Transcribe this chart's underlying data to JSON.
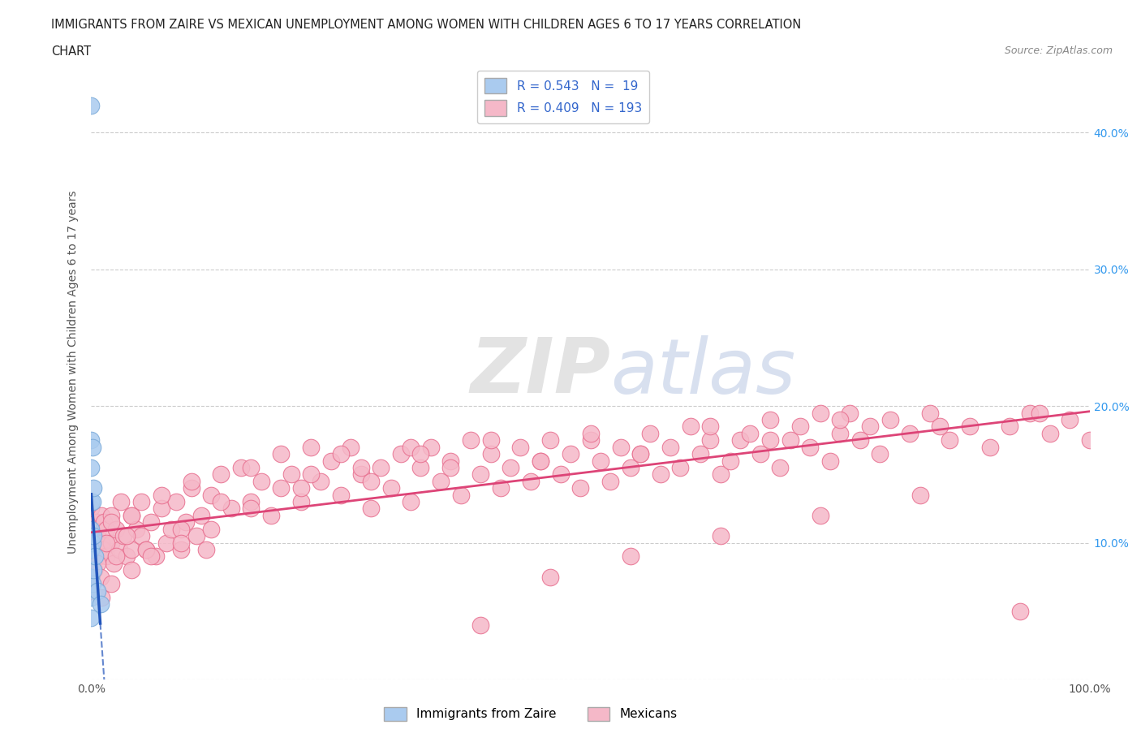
{
  "title_line1": "IMMIGRANTS FROM ZAIRE VS MEXICAN UNEMPLOYMENT AMONG WOMEN WITH CHILDREN AGES 6 TO 17 YEARS CORRELATION",
  "title_line2": "CHART",
  "source": "Source: ZipAtlas.com",
  "ylabel": "Unemployment Among Women with Children Ages 6 to 17 years",
  "background_color": "#ffffff",
  "grid_color": "#cccccc",
  "xlim": [
    0.0,
    1.0
  ],
  "ylim": [
    0.0,
    0.45
  ],
  "xticks": [
    0.0,
    0.1,
    0.2,
    0.3,
    0.4,
    0.5,
    0.6,
    0.7,
    0.8,
    0.9,
    1.0
  ],
  "yticks": [
    0.0,
    0.1,
    0.2,
    0.3,
    0.4
  ],
  "ytick_labels": [
    "",
    "10.0%",
    "20.0%",
    "30.0%",
    "40.0%"
  ],
  "zaire_color": "#aacbef",
  "zaire_edge_color": "#7aaad8",
  "mex_color": "#f5b8c8",
  "mex_edge_color": "#e87090",
  "zaire_line_color": "#2255bb",
  "mex_line_color": "#dd4477",
  "legend_color": "#3366cc",
  "watermark1": "ZIP",
  "watermark2": "atlas",
  "watermark1_color": "#cccccc",
  "watermark2_color": "#aabbdd",
  "zaire_x": [
    0.0,
    0.0,
    0.0,
    0.0,
    0.0,
    0.0,
    0.0,
    0.0,
    0.0,
    0.001,
    0.001,
    0.001,
    0.001,
    0.002,
    0.002,
    0.002,
    0.004,
    0.006,
    0.009
  ],
  "zaire_y": [
    0.42,
    0.175,
    0.155,
    0.13,
    0.11,
    0.095,
    0.075,
    0.06,
    0.045,
    0.17,
    0.13,
    0.1,
    0.07,
    0.14,
    0.105,
    0.08,
    0.09,
    0.065,
    0.055
  ],
  "mex_x": [
    0.0,
    0.0,
    0.0,
    0.0,
    0.0,
    0.0,
    0.0,
    0.0,
    0.0,
    0.0,
    0.005,
    0.005,
    0.007,
    0.008,
    0.01,
    0.01,
    0.012,
    0.013,
    0.015,
    0.015,
    0.02,
    0.02,
    0.022,
    0.025,
    0.028,
    0.03,
    0.032,
    0.035,
    0.04,
    0.04,
    0.045,
    0.05,
    0.05,
    0.055,
    0.06,
    0.065,
    0.07,
    0.075,
    0.08,
    0.085,
    0.09,
    0.095,
    0.1,
    0.105,
    0.11,
    0.115,
    0.12,
    0.13,
    0.14,
    0.15,
    0.16,
    0.17,
    0.18,
    0.19,
    0.2,
    0.21,
    0.22,
    0.23,
    0.24,
    0.25,
    0.26,
    0.27,
    0.28,
    0.29,
    0.3,
    0.31,
    0.32,
    0.33,
    0.34,
    0.35,
    0.36,
    0.37,
    0.38,
    0.39,
    0.4,
    0.41,
    0.42,
    0.43,
    0.44,
    0.45,
    0.46,
    0.47,
    0.48,
    0.49,
    0.5,
    0.51,
    0.52,
    0.53,
    0.54,
    0.55,
    0.56,
    0.57,
    0.58,
    0.59,
    0.6,
    0.61,
    0.62,
    0.63,
    0.64,
    0.65,
    0.66,
    0.67,
    0.68,
    0.69,
    0.7,
    0.71,
    0.72,
    0.73,
    0.74,
    0.75,
    0.76,
    0.77,
    0.78,
    0.79,
    0.8,
    0.82,
    0.84,
    0.86,
    0.88,
    0.9,
    0.92,
    0.94,
    0.96,
    0.98,
    1.0,
    0.003,
    0.006,
    0.009,
    0.015,
    0.02,
    0.025,
    0.035,
    0.04,
    0.055,
    0.07,
    0.09,
    0.1,
    0.13,
    0.16,
    0.19,
    0.22,
    0.25,
    0.28,
    0.32,
    0.36,
    0.4,
    0.45,
    0.5,
    0.55,
    0.62,
    0.68,
    0.75,
    0.85,
    0.95,
    0.01,
    0.02,
    0.04,
    0.06,
    0.09,
    0.12,
    0.16,
    0.21,
    0.27,
    0.33,
    0.39,
    0.46,
    0.54,
    0.63,
    0.73,
    0.83,
    0.93
  ],
  "mex_y": [
    0.125,
    0.115,
    0.105,
    0.095,
    0.09,
    0.085,
    0.08,
    0.075,
    0.07,
    0.065,
    0.115,
    0.095,
    0.11,
    0.09,
    0.12,
    0.1,
    0.095,
    0.115,
    0.11,
    0.09,
    0.12,
    0.1,
    0.085,
    0.11,
    0.095,
    0.13,
    0.105,
    0.09,
    0.12,
    0.095,
    0.11,
    0.13,
    0.105,
    0.095,
    0.115,
    0.09,
    0.125,
    0.1,
    0.11,
    0.13,
    0.095,
    0.115,
    0.14,
    0.105,
    0.12,
    0.095,
    0.135,
    0.15,
    0.125,
    0.155,
    0.13,
    0.145,
    0.12,
    0.165,
    0.15,
    0.13,
    0.17,
    0.145,
    0.16,
    0.135,
    0.17,
    0.15,
    0.125,
    0.155,
    0.14,
    0.165,
    0.13,
    0.155,
    0.17,
    0.145,
    0.16,
    0.135,
    0.175,
    0.15,
    0.165,
    0.14,
    0.155,
    0.17,
    0.145,
    0.16,
    0.175,
    0.15,
    0.165,
    0.14,
    0.175,
    0.16,
    0.145,
    0.17,
    0.155,
    0.165,
    0.18,
    0.15,
    0.17,
    0.155,
    0.185,
    0.165,
    0.175,
    0.15,
    0.16,
    0.175,
    0.18,
    0.165,
    0.19,
    0.155,
    0.175,
    0.185,
    0.17,
    0.195,
    0.16,
    0.18,
    0.195,
    0.175,
    0.185,
    0.165,
    0.19,
    0.18,
    0.195,
    0.175,
    0.185,
    0.17,
    0.185,
    0.195,
    0.18,
    0.19,
    0.175,
    0.08,
    0.085,
    0.075,
    0.1,
    0.115,
    0.09,
    0.105,
    0.12,
    0.095,
    0.135,
    0.11,
    0.145,
    0.13,
    0.155,
    0.14,
    0.15,
    0.165,
    0.145,
    0.17,
    0.155,
    0.175,
    0.16,
    0.18,
    0.165,
    0.185,
    0.175,
    0.19,
    0.185,
    0.195,
    0.06,
    0.07,
    0.08,
    0.09,
    0.1,
    0.11,
    0.125,
    0.14,
    0.155,
    0.165,
    0.04,
    0.075,
    0.09,
    0.105,
    0.12,
    0.135,
    0.05
  ]
}
